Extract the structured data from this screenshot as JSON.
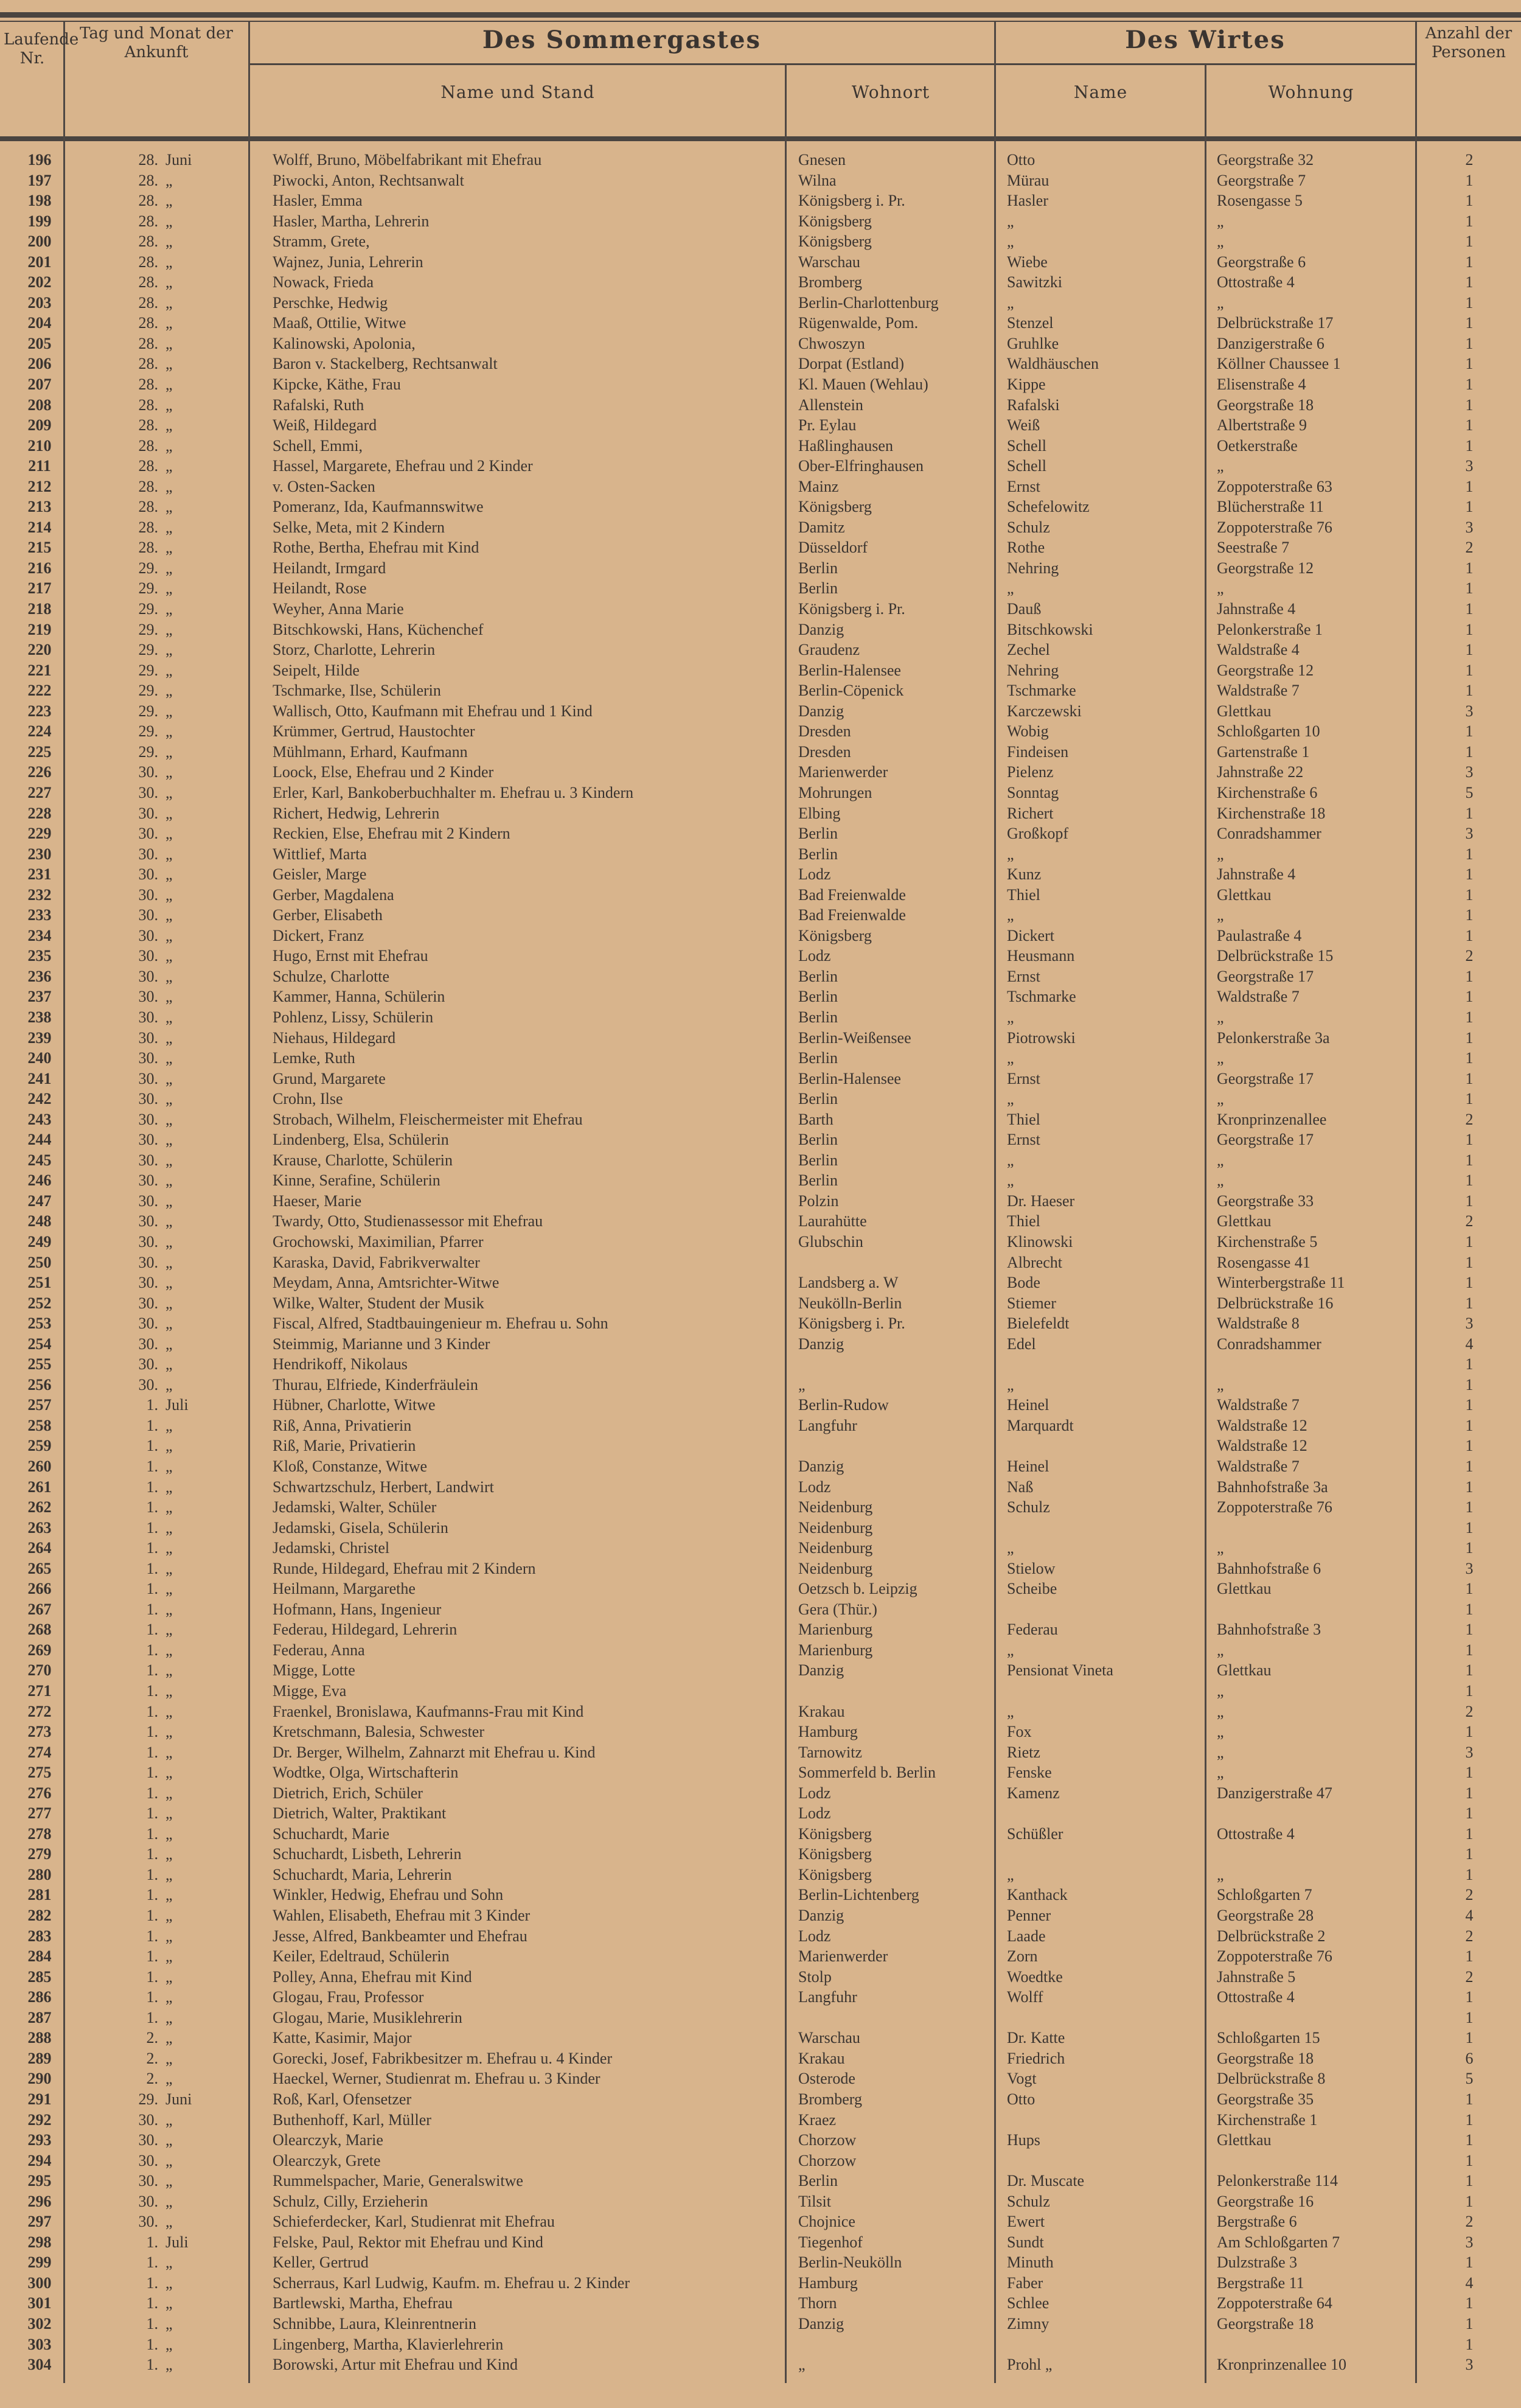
{
  "header": {
    "col_nr": "Laufende Nr.",
    "col_date": "Tag und Monat der Ankunft",
    "group_guest": "Des Sommergastes",
    "group_host": "Des Wirtes",
    "guest_name": "Name und Stand",
    "guest_residence": "Wohnort",
    "host_name": "Name",
    "host_address": "Wohnung",
    "col_count": "Anzahl der Personen"
  },
  "rows": [
    [
      "196",
      "28.",
      "Juni",
      "Wolff, Bruno, Möbelfabrikant mit Ehefrau",
      "Gnesen",
      "Otto",
      "Georgstraße 32",
      "2"
    ],
    [
      "197",
      "28.",
      "„",
      "Piwocki, Anton, Rechtsanwalt",
      "Wilna",
      "Mürau",
      "Georgstraße 7",
      "1"
    ],
    [
      "198",
      "28.",
      "„",
      "Hasler, Emma",
      "Königsberg i. Pr.",
      "Hasler",
      "Rosengasse 5",
      "1"
    ],
    [
      "199",
      "28.",
      "„",
      "Hasler, Martha, Lehrerin",
      "Königsberg",
      "„",
      "„",
      "1"
    ],
    [
      "200",
      "28.",
      "„",
      "Stramm, Grete,",
      "Königsberg",
      "„",
      "„",
      "1"
    ],
    [
      "201",
      "28.",
      "„",
      "Wajnez, Junia, Lehrerin",
      "Warschau",
      "Wiebe",
      "Georgstraße 6",
      "1"
    ],
    [
      "202",
      "28.",
      "„",
      "Nowack, Frieda",
      "Bromberg",
      "Sawitzki",
      "Ottostraße 4",
      "1"
    ],
    [
      "203",
      "28.",
      "„",
      "Perschke, Hedwig",
      "Berlin-Charlottenburg",
      "„",
      "„",
      "1"
    ],
    [
      "204",
      "28.",
      "„",
      "Maaß, Ottilie, Witwe",
      "Rügenwalde, Pom.",
      "Stenzel",
      "Delbrückstraße 17",
      "1"
    ],
    [
      "205",
      "28.",
      "„",
      "Kalinowski, Apolonia,",
      "Chwoszyn",
      "Gruhlke",
      "Danzigerstraße 6",
      "1"
    ],
    [
      "206",
      "28.",
      "„",
      "Baron v. Stackelberg, Rechtsanwalt",
      "Dorpat (Estland)",
      "Waldhäuschen",
      "Köllner Chaussee 1",
      "1"
    ],
    [
      "207",
      "28.",
      "„",
      "Kipcke, Käthe, Frau",
      "Kl. Mauen (Wehlau)",
      "Kippe",
      "Elisenstraße 4",
      "1"
    ],
    [
      "208",
      "28.",
      "„",
      "Rafalski, Ruth",
      "Allenstein",
      "Rafalski",
      "Georgstraße 18",
      "1"
    ],
    [
      "209",
      "28.",
      "„",
      "Weiß, Hildegard",
      "Pr. Eylau",
      "Weiß",
      "Albertstraße 9",
      "1"
    ],
    [
      "210",
      "28.",
      "„",
      "Schell, Emmi,",
      "Haßlinghausen",
      "Schell",
      "Oetkerstraße",
      "1"
    ],
    [
      "211",
      "28.",
      "„",
      "Hassel, Margarete, Ehefrau und 2 Kinder",
      "Ober-Elfringhausen",
      "Schell",
      "„",
      "3"
    ],
    [
      "212",
      "28.",
      "„",
      "v. Osten-Sacken",
      "Mainz",
      "Ernst",
      "Zoppoterstraße 63",
      "1"
    ],
    [
      "213",
      "28.",
      "„",
      "Pomeranz, Ida, Kaufmannswitwe",
      "Königsberg",
      "Schefelowitz",
      "Blücherstraße 11",
      "1"
    ],
    [
      "214",
      "28.",
      "„",
      "Selke, Meta, mit 2 Kindern",
      "Damitz",
      "Schulz",
      "Zoppoterstraße 76",
      "3"
    ],
    [
      "215",
      "28.",
      "„",
      "Rothe, Bertha, Ehefrau mit Kind",
      "Düsseldorf",
      "Rothe",
      "Seestraße 7",
      "2"
    ],
    [
      "216",
      "29.",
      "„",
      "Heilandt, Irmgard",
      "Berlin",
      "Nehring",
      "Georgstraße 12",
      "1"
    ],
    [
      "217",
      "29.",
      "„",
      "Heilandt, Rose",
      "Berlin",
      "„",
      "„",
      "1"
    ],
    [
      "218",
      "29.",
      "„",
      "Weyher, Anna Marie",
      "Königsberg i. Pr.",
      "Dauß",
      "Jahnstraße 4",
      "1"
    ],
    [
      "219",
      "29.",
      "„",
      "Bitschkowski, Hans, Küchenchef",
      "Danzig",
      "Bitschkowski",
      "Pelonkerstraße 1",
      "1"
    ],
    [
      "220",
      "29.",
      "„",
      "Storz, Charlotte, Lehrerin",
      "Graudenz",
      "Zechel",
      "Waldstraße 4",
      "1"
    ],
    [
      "221",
      "29.",
      "„",
      "Seipelt, Hilde",
      "Berlin-Halensee",
      "Nehring",
      "Georgstraße 12",
      "1"
    ],
    [
      "222",
      "29.",
      "„",
      "Tschmarke, Ilse, Schülerin",
      "Berlin-Cöpenick",
      "Tschmarke",
      "Waldstraße 7",
      "1"
    ],
    [
      "223",
      "29.",
      "„",
      "Wallisch, Otto, Kaufmann mit Ehefrau und 1 Kind",
      "Danzig",
      "Karczewski",
      "Glettkau",
      "3"
    ],
    [
      "224",
      "29.",
      "„",
      "Krümmer, Gertrud, Haustochter",
      "Dresden",
      "Wobig",
      "Schloßgarten 10",
      "1"
    ],
    [
      "225",
      "29.",
      "„",
      "Mühlmann, Erhard, Kaufmann",
      "Dresden",
      "Findeisen",
      "Gartenstraße 1",
      "1"
    ],
    [
      "226",
      "30.",
      "„",
      "Loock, Else, Ehefrau und 2 Kinder",
      "Marienwerder",
      "Pielenz",
      "Jahnstraße 22",
      "3"
    ],
    [
      "227",
      "30.",
      "„",
      "Erler, Karl, Bankoberbuchhalter m. Ehefrau u. 3 Kindern",
      "Mohrungen",
      "Sonntag",
      "Kirchenstraße 6",
      "5"
    ],
    [
      "228",
      "30.",
      "„",
      "Richert, Hedwig, Lehrerin",
      "Elbing",
      "Richert",
      "Kirchenstraße 18",
      "1"
    ],
    [
      "229",
      "30.",
      "„",
      "Reckien, Else, Ehefrau mit 2 Kindern",
      "Berlin",
      "Großkopf",
      "Conradshammer",
      "3"
    ],
    [
      "230",
      "30.",
      "„",
      "Wittlief, Marta",
      "Berlin",
      "„",
      "„",
      "1"
    ],
    [
      "231",
      "30.",
      "„",
      "Geisler, Marge",
      "Lodz",
      "Kunz",
      "Jahnstraße 4",
      "1"
    ],
    [
      "232",
      "30.",
      "„",
      "Gerber, Magdalena",
      "Bad Freienwalde",
      "Thiel",
      "Glettkau",
      "1"
    ],
    [
      "233",
      "30.",
      "„",
      "Gerber, Elisabeth",
      "Bad Freienwalde",
      "„",
      "„",
      "1"
    ],
    [
      "234",
      "30.",
      "„",
      "Dickert, Franz",
      "Königsberg",
      "Dickert",
      "Paulastraße 4",
      "1"
    ],
    [
      "235",
      "30.",
      "„",
      "Hugo, Ernst mit Ehefrau",
      "Lodz",
      "Heusmann",
      "Delbrückstraße 15",
      "2"
    ],
    [
      "236",
      "30.",
      "„",
      "Schulze, Charlotte",
      "Berlin",
      "Ernst",
      "Georgstraße 17",
      "1"
    ],
    [
      "237",
      "30.",
      "„",
      "Kammer, Hanna, Schülerin",
      "Berlin",
      "Tschmarke",
      "Waldstraße 7",
      "1"
    ],
    [
      "238",
      "30.",
      "„",
      "Pohlenz, Lissy, Schülerin",
      "Berlin",
      "„",
      "„",
      "1"
    ],
    [
      "239",
      "30.",
      "„",
      "Niehaus, Hildegard",
      "Berlin-Weißensee",
      "Piotrowski",
      "Pelonkerstraße 3a",
      "1"
    ],
    [
      "240",
      "30.",
      "„",
      "Lemke, Ruth",
      "Berlin",
      "„",
      "„",
      "1"
    ],
    [
      "241",
      "30.",
      "„",
      "Grund, Margarete",
      "Berlin-Halensee",
      "Ernst",
      "Georgstraße 17",
      "1"
    ],
    [
      "242",
      "30.",
      "„",
      "Crohn, Ilse",
      "Berlin",
      "„",
      "„",
      "1"
    ],
    [
      "243",
      "30.",
      "„",
      "Strobach, Wilhelm, Fleischermeister mit Ehefrau",
      "Barth",
      "Thiel",
      "Kronprinzenallee",
      "2"
    ],
    [
      "244",
      "30.",
      "„",
      "Lindenberg, Elsa, Schülerin",
      "Berlin",
      "Ernst",
      "Georgstraße 17",
      "1"
    ],
    [
      "245",
      "30.",
      "„",
      "Krause, Charlotte, Schülerin",
      "Berlin",
      "„",
      "„",
      "1"
    ],
    [
      "246",
      "30.",
      "„",
      "Kinne, Serafine, Schülerin",
      "Berlin",
      "„",
      "„",
      "1"
    ],
    [
      "247",
      "30.",
      "„",
      "Haeser, Marie",
      "Polzin",
      "Dr. Haeser",
      "Georgstraße 33",
      "1"
    ],
    [
      "248",
      "30.",
      "„",
      "Twardy, Otto, Studienassessor mit Ehefrau",
      "Laurahütte",
      "Thiel",
      "Glettkau",
      "2"
    ],
    [
      "249",
      "30.",
      "„",
      "Grochowski, Maximilian, Pfarrer",
      "Glubschin",
      "Klinowski",
      "Kirchenstraße 5",
      "1"
    ],
    [
      "250",
      "30.",
      "„",
      "Karaska, David, Fabrikverwalter",
      "",
      "Albrecht",
      "Rosengasse 41",
      "1"
    ],
    [
      "251",
      "30.",
      "„",
      "Meydam, Anna, Amtsrichter-Witwe",
      "Landsberg a. W",
      "Bode",
      "Winterbergstraße 11",
      "1"
    ],
    [
      "252",
      "30.",
      "„",
      "Wilke, Walter, Student der Musik",
      "Neukölln-Berlin",
      "Stiemer",
      "Delbrückstraße 16",
      "1"
    ],
    [
      "253",
      "30.",
      "„",
      "Fiscal, Alfred, Stadtbauingenieur m. Ehefrau u. Sohn",
      "Königsberg i. Pr.",
      "Bielefeldt",
      "Waldstraße 8",
      "3"
    ],
    [
      "254",
      "30.",
      "„",
      "Steimmig, Marianne und 3 Kinder",
      "Danzig",
      "Edel",
      "Conradshammer",
      "4"
    ],
    [
      "255",
      "30.",
      "„",
      "Hendrikoff, Nikolaus",
      "",
      "",
      "",
      "1"
    ],
    [
      "256",
      "30.",
      "„",
      "Thurau, Elfriede, Kinderfräulein",
      "„",
      "„",
      "„",
      "1"
    ],
    [
      "257",
      "1.",
      "Juli",
      "Hübner, Charlotte, Witwe",
      "Berlin-Rudow",
      "Heinel",
      "Waldstraße 7",
      "1"
    ],
    [
      "258",
      "1.",
      "„",
      "Riß, Anna, Privatierin",
      "Langfuhr",
      "Marquardt",
      "Waldstraße 12",
      "1"
    ],
    [
      "259",
      "1.",
      "„",
      "Riß, Marie, Privatierin",
      "",
      "",
      "Waldstraße 12",
      "1"
    ],
    [
      "260",
      "1.",
      "„",
      "Kloß, Constanze, Witwe",
      "Danzig",
      "Heinel",
      "Waldstraße 7",
      "1"
    ],
    [
      "261",
      "1.",
      "„",
      "Schwartzschulz, Herbert, Landwirt",
      "Lodz",
      "Naß",
      "Bahnhofstraße 3a",
      "1"
    ],
    [
      "262",
      "1.",
      "„",
      "Jedamski, Walter, Schüler",
      "Neidenburg",
      "Schulz",
      "Zoppoterstraße 76",
      "1"
    ],
    [
      "263",
      "1.",
      "„",
      "Jedamski, Gisela, Schülerin",
      "Neidenburg",
      "",
      "",
      "1"
    ],
    [
      "264",
      "1.",
      "„",
      "Jedamski, Christel",
      "Neidenburg",
      "„",
      "„",
      "1"
    ],
    [
      "265",
      "1.",
      "„",
      "Runde, Hildegard, Ehefrau mit 2 Kindern",
      "Neidenburg",
      "Stielow",
      "Bahnhofstraße 6",
      "3"
    ],
    [
      "266",
      "1.",
      "„",
      "Heilmann, Margarethe",
      "Oetzsch b. Leipzig",
      "Scheibe",
      "Glettkau",
      "1"
    ],
    [
      "267",
      "1.",
      "„",
      "Hofmann, Hans, Ingenieur",
      "Gera (Thür.)",
      "",
      "",
      "1"
    ],
    [
      "268",
      "1.",
      "„",
      "Federau, Hildegard, Lehrerin",
      "Marienburg",
      "Federau",
      "Bahnhofstraße 3",
      "1"
    ],
    [
      "269",
      "1.",
      "„",
      "Federau, Anna",
      "Marienburg",
      "„",
      "„",
      "1"
    ],
    [
      "270",
      "1.",
      "„",
      "Migge, Lotte",
      "Danzig",
      "Pensionat Vineta",
      "Glettkau",
      "1"
    ],
    [
      "271",
      "1.",
      "„",
      "Migge, Eva",
      "",
      "",
      "„",
      "1"
    ],
    [
      "272",
      "1.",
      "„",
      "Fraenkel, Bronislawa, Kaufmanns-Frau mit Kind",
      "Krakau",
      "„",
      "„",
      "2"
    ],
    [
      "273",
      "1.",
      "„",
      "Kretschmann, Balesia, Schwester",
      "Hamburg",
      "Fox",
      "„",
      "1"
    ],
    [
      "274",
      "1.",
      "„",
      "Dr. Berger, Wilhelm, Zahnarzt mit Ehefrau u. Kind",
      "Tarnowitz",
      "Rietz",
      "„",
      "3"
    ],
    [
      "275",
      "1.",
      "„",
      "Wodtke, Olga, Wirtschafterin",
      "Sommerfeld b. Berlin",
      "Fenske",
      "„",
      "1"
    ],
    [
      "276",
      "1.",
      "„",
      "Dietrich, Erich, Schüler",
      "Lodz",
      "Kamenz",
      "Danzigerstraße 47",
      "1"
    ],
    [
      "277",
      "1.",
      "„",
      "Dietrich, Walter, Praktikant",
      "Lodz",
      "",
      "",
      "1"
    ],
    [
      "278",
      "1.",
      "„",
      "Schuchardt, Marie",
      "Königsberg",
      "Schüßler",
      "Ottostraße 4",
      "1"
    ],
    [
      "279",
      "1.",
      "„",
      "Schuchardt, Lisbeth, Lehrerin",
      "Königsberg",
      "",
      "",
      "1"
    ],
    [
      "280",
      "1.",
      "„",
      "Schuchardt, Maria, Lehrerin",
      "Königsberg",
      "„",
      "„",
      "1"
    ],
    [
      "281",
      "1.",
      "„",
      "Winkler, Hedwig, Ehefrau und Sohn",
      "Berlin-Lichtenberg",
      "Kanthack",
      "Schloßgarten 7",
      "2"
    ],
    [
      "282",
      "1.",
      "„",
      "Wahlen, Elisabeth, Ehefrau mit 3 Kinder",
      "Danzig",
      "Penner",
      "Georgstraße 28",
      "4"
    ],
    [
      "283",
      "1.",
      "„",
      "Jesse, Alfred, Bankbeamter und Ehefrau",
      "Lodz",
      "Laade",
      "Delbrückstraße 2",
      "2"
    ],
    [
      "284",
      "1.",
      "„",
      "Keiler, Edeltraud, Schülerin",
      "Marienwerder",
      "Zorn",
      "Zoppoterstraße 76",
      "1"
    ],
    [
      "285",
      "1.",
      "„",
      "Polley, Anna, Ehefrau mit Kind",
      "Stolp",
      "Woedtke",
      "Jahnstraße 5",
      "2"
    ],
    [
      "286",
      "1.",
      "„",
      "Glogau, Frau, Professor",
      "Langfuhr",
      "Wolff",
      "Ottostraße 4",
      "1"
    ],
    [
      "287",
      "1.",
      "„",
      "Glogau, Marie, Musiklehrerin",
      "",
      "",
      "",
      "1"
    ],
    [
      "288",
      "2.",
      "„",
      "Katte, Kasimir, Major",
      "Warschau",
      "Dr. Katte",
      "Schloßgarten 15",
      "1"
    ],
    [
      "289",
      "2.",
      "„",
      "Gorecki, Josef, Fabrikbesitzer m. Ehefrau u. 4 Kinder",
      "Krakau",
      "Friedrich",
      "Georgstraße 18",
      "6"
    ],
    [
      "290",
      "2.",
      "„",
      "Haeckel, Werner, Studienrat m. Ehefrau u. 3 Kinder",
      "Osterode",
      "Vogt",
      "Delbrückstraße 8",
      "5"
    ],
    [
      "291",
      "29.",
      "Juni",
      "Roß, Karl, Ofensetzer",
      "Bromberg",
      "Otto",
      "Georgstraße 35",
      "1"
    ],
    [
      "292",
      "30.",
      "„",
      "Buthenhoff, Karl, Müller",
      "Kraez",
      "",
      "Kirchenstraße 1",
      "1"
    ],
    [
      "293",
      "30.",
      "„",
      "Olearczyk, Marie",
      "Chorzow",
      "Hups",
      "Glettkau",
      "1"
    ],
    [
      "294",
      "30.",
      "„",
      "Olearczyk, Grete",
      "Chorzow",
      "",
      "",
      "1"
    ],
    [
      "295",
      "30.",
      "„",
      "Rummelspacher, Marie, Generalswitwe",
      "Berlin",
      "Dr. Muscate",
      "Pelonkerstraße 114",
      "1"
    ],
    [
      "296",
      "30.",
      "„",
      "Schulz, Cilly, Erzieherin",
      "Tilsit",
      "Schulz",
      "Georgstraße 16",
      "1"
    ],
    [
      "297",
      "30.",
      "„",
      "Schieferdecker, Karl, Studienrat mit Ehefrau",
      "Chojnice",
      "Ewert",
      "Bergstraße 6",
      "2"
    ],
    [
      "298",
      "1.",
      "Juli",
      "Felske, Paul, Rektor mit Ehefrau und Kind",
      "Tiegenhof",
      "Sundt",
      "Am Schloßgarten 7",
      "3"
    ],
    [
      "299",
      "1.",
      "„",
      "Keller, Gertrud",
      "Berlin-Neukölln",
      "Minuth",
      "Dulzstraße 3",
      "1"
    ],
    [
      "300",
      "1.",
      "„",
      "Scherraus, Karl Ludwig, Kaufm. m. Ehefrau u. 2 Kinder",
      "Hamburg",
      "Faber",
      "Bergstraße 11",
      "4"
    ],
    [
      "301",
      "1.",
      "„",
      "Bartlewski, Martha, Ehefrau",
      "Thorn",
      "Schlee",
      "Zoppoterstraße 64",
      "1"
    ],
    [
      "302",
      "1.",
      "„",
      "Schnibbe, Laura, Kleinrentnerin",
      "Danzig",
      "Zimny",
      "Georgstraße 18",
      "1"
    ],
    [
      "303",
      "1.",
      "„",
      "Lingenberg, Martha, Klavierlehrerin",
      "",
      "",
      "",
      "1"
    ],
    [
      "304",
      "1.",
      "„",
      "Borowski, Artur mit Ehefrau und Kind",
      "„",
      "Prohl „",
      "Kronprinzenallee 10",
      "3"
    ]
  ]
}
